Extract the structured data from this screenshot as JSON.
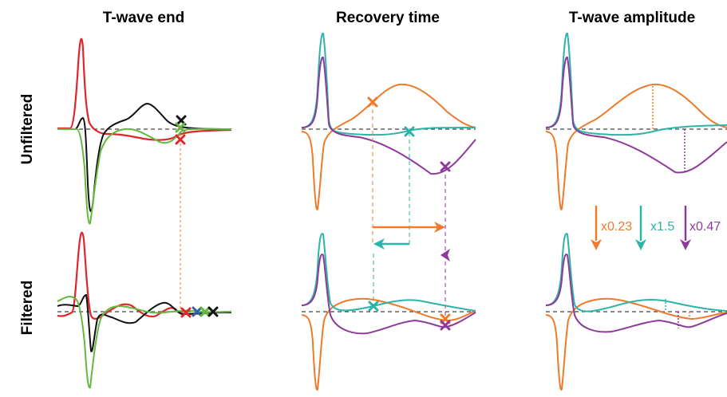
{
  "titles": {
    "col_1": "T-wave end",
    "col_2": "Recovery time",
    "col_3": "T-wave amplitude",
    "row_1": "Unfiltered",
    "row_2": "Filtered"
  },
  "scale_factors": {
    "orange": "x0.23",
    "teal": "x1.5",
    "purple": "x0.47"
  },
  "colors": {
    "orange": "#ee7a2a",
    "teal": "#2db3a8",
    "purple": "#8e3a9b",
    "red": "#e0262a",
    "green": "#63b93e",
    "black": "#111111",
    "blue": "#2f5fa5"
  }
}
